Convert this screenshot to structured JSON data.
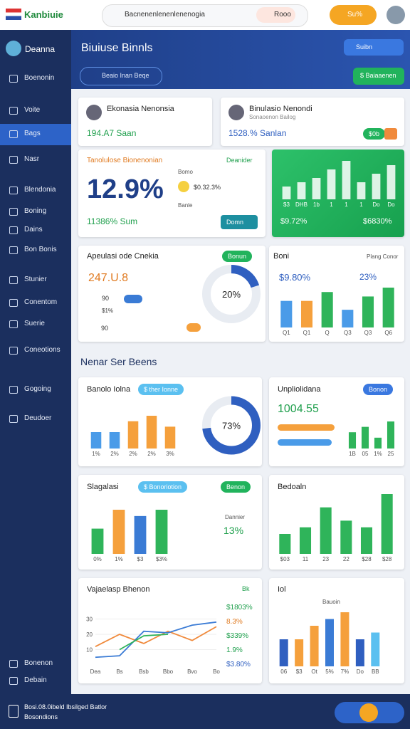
{
  "topbar": {
    "brand": "Kanbiuie",
    "search": "Bacnenenlenenlenenogia",
    "chip": "Rooo",
    "button": "Su%"
  },
  "sidebar": {
    "user": "Deanna",
    "items": [
      "Boenonin",
      "Voite",
      "Bags",
      "Nasr",
      "Blendonia",
      "Boning",
      "Dains",
      "Bon Bonis",
      "Stunier",
      "Conentom",
      "Suerie",
      "Coneotions",
      "Gogoing",
      "Deudoer",
      "Bonenon",
      "Debain"
    ]
  },
  "header": {
    "title": "Biuiuse Binnls",
    "filter": "Beaio Inan Beqe",
    "badge": "Suibn",
    "action": "$ Baiaaenen"
  },
  "card1": {
    "title": "Ekonasia Nenonsia",
    "value": "194.A7 Saan"
  },
  "card2": {
    "title": "Binulasio Nenondi",
    "subtitle": "Sonaoenon Bailog",
    "value": "1528.% Sanlan",
    "chip": "$0b"
  },
  "card3": {
    "title": "Tanolulose Bionenonian",
    "tag": "Deanider",
    "big": "12.9%",
    "label1": "Bomo",
    "label2": "$0.32.3%",
    "label3": "Banle",
    "value": "11386% Sum",
    "button": "Domn"
  },
  "card4": {
    "left": "$9.72%",
    "right": "$6830%"
  },
  "card5": {
    "title": "Apeulasi ode Cnekia",
    "chip": "Bonun",
    "value": "247.U.8",
    "r1": "90",
    "r2": "$1%",
    "b1": "90"
  },
  "card6": {
    "title": "Boni",
    "tag": "Plang Conor",
    "value": "$9.80%",
    "pct": "23%"
  },
  "section_title": "Nenar Ser Beens",
  "card7": {
    "title": "Banolo Iolna",
    "chip": "$ ther Ionne"
  },
  "card8": {
    "title": "Unpliolidana",
    "chip": "Bonon",
    "value": "1004.55"
  },
  "card9": {
    "title": "Slagalasi",
    "chip": "$ Bonoriotion",
    "chip2": "Benon",
    "label": "Dannier",
    "value": "13%"
  },
  "card10": {
    "title": "Bedoaln"
  },
  "card11": {
    "title": "Vajaelasp Bhenon",
    "tag": "Bk",
    "list": [
      "$1803%",
      "8.3%",
      "$339%",
      "1.9%",
      "$3.80%"
    ]
  },
  "card12": {
    "title": "Iol",
    "tag": "Bauoin"
  },
  "footer": {
    "line1": "Bosi.08.0ibeld Ibsilged Batlor",
    "line2": "Bosondions"
  },
  "charts": {
    "green": {
      "values": [
        3,
        4,
        5,
        7,
        9,
        4,
        6,
        8
      ],
      "colors": [
        "#ffffff",
        "#ffffff",
        "#ffffff",
        "#ffffff",
        "#ffffff",
        "#ffffff",
        "#ffffff",
        "#ffffff"
      ],
      "categories": [
        "$3",
        "DHB",
        "1b",
        "1",
        "1",
        "1",
        "Do",
        "Do"
      ]
    },
    "boni": {
      "values": [
        6,
        6,
        8,
        4,
        7,
        9
      ],
      "colors": [
        "#4a9be8",
        "#f5a03c",
        "#2fb45a",
        "#4a9be8",
        "#2fb45a",
        "#2fb45a"
      ],
      "categories": [
        "Q1",
        "Q1",
        "Q",
        "Q3",
        "Q3",
        "Q6"
      ]
    },
    "donut1": {
      "value": 20,
      "value_label": "20%"
    },
    "donut2": {
      "value": 73,
      "value_label": "73%"
    },
    "b7": {
      "values": [
        3,
        3,
        5,
        6,
        4
      ],
      "colors": [
        "#4a9be8",
        "#4a9be8",
        "#f5a03c",
        "#f5a03c",
        "#f5a03c"
      ],
      "categories": [
        "1%",
        "2%",
        "2%",
        "2%",
        "3%"
      ]
    },
    "b8": {
      "values": [
        3,
        4,
        2,
        5
      ],
      "colors": [
        "#2fb45a",
        "#2fb45a",
        "#2fb45a",
        "#2fb45a"
      ],
      "categories": [
        "1B",
        "05",
        "1%",
        "25"
      ]
    },
    "b9": {
      "values": [
        4,
        7,
        6,
        7
      ],
      "colors": [
        "#2fb45a",
        "#f5a03c",
        "#3a7bd5",
        "#2fb45a"
      ],
      "categories": [
        "0%",
        "1%",
        "$3",
        "$3%"
      ]
    },
    "b10": {
      "values": [
        3,
        4,
        7,
        5,
        4,
        9
      ],
      "colors": [
        "#2fb45a",
        "#2fb45a",
        "#2fb45a",
        "#2fb45a",
        "#2fb45a",
        "#2fb45a"
      ],
      "categories": [
        "$03",
        "11",
        "23",
        "22",
        "$28",
        "$28"
      ]
    },
    "b12": {
      "values": [
        4,
        4,
        6,
        7,
        8,
        4,
        5
      ],
      "colors": [
        "#2f5fc0",
        "#f5a03c",
        "#f5a03c",
        "#3a7bd5",
        "#f5a03c",
        "#2f5fc0",
        "#5bc0f0"
      ],
      "categories": [
        "06",
        "$3",
        "Ot",
        "5%",
        "7%",
        "Do",
        "BB"
      ]
    },
    "line": {
      "categories": [
        "Dea",
        "Bs",
        "Bsb",
        "Bbo",
        "Bvo",
        "Bo"
      ],
      "ylim": [
        0,
        40
      ],
      "yticks": [
        10,
        20,
        30
      ],
      "series": [
        {
          "color": "#f08a3c",
          "values": [
            12,
            20,
            14,
            22,
            16,
            25
          ]
        },
        {
          "color": "#3a7bd5",
          "values": [
            5,
            6,
            22,
            21,
            26,
            28
          ]
        },
        {
          "color": "#2fb45a",
          "values": [
            null,
            10,
            19,
            20,
            null,
            null
          ]
        }
      ]
    }
  }
}
